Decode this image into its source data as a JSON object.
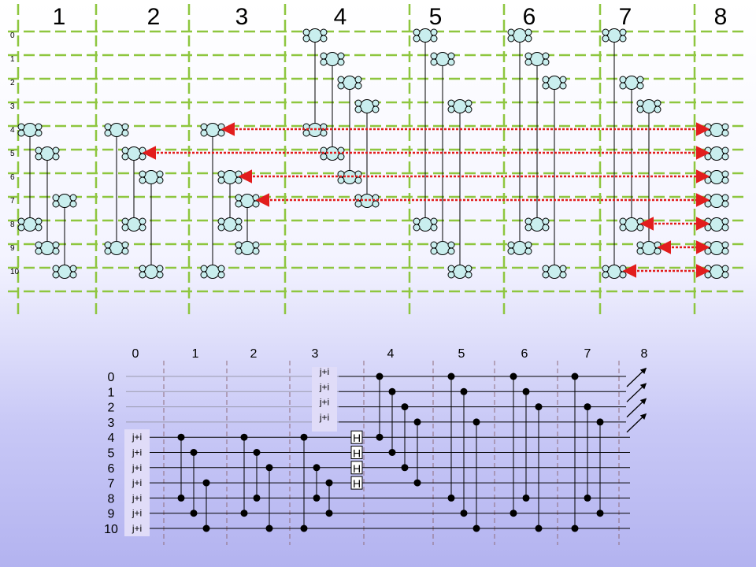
{
  "top_diagram": {
    "column_numbers": [
      "1",
      "2",
      "3",
      "4",
      "5",
      "6",
      "7",
      "8"
    ],
    "row_numbers": [
      "0",
      "1",
      "2",
      "3",
      "4",
      "5",
      "6",
      "7",
      "8",
      "9",
      "10"
    ],
    "colors": {
      "grid_line": "#8ec63f",
      "molecule_fill": "#c9eeee",
      "outline": "#000000",
      "arrow": "#e21d1d"
    },
    "molecule_pairs": [
      {
        "column": 1,
        "from_row": 4,
        "to_row": 8
      },
      {
        "column": 1,
        "from_row": 5,
        "to_row": 9
      },
      {
        "column": 1,
        "from_row": 7,
        "to_row": 10
      },
      {
        "column": 2,
        "from_row": 4,
        "to_row": 9
      },
      {
        "column": 2,
        "from_row": 5,
        "to_row": 8
      },
      {
        "column": 2,
        "from_row": 6,
        "to_row": 10
      },
      {
        "column": 3,
        "from_row": 4,
        "to_row": 10
      },
      {
        "column": 3,
        "from_row": 6,
        "to_row": 8
      },
      {
        "column": 3,
        "from_row": 7,
        "to_row": 9
      },
      {
        "column": 4,
        "from_row": 0,
        "to_row": 4
      },
      {
        "column": 4,
        "from_row": 1,
        "to_row": 5
      },
      {
        "column": 4,
        "from_row": 2,
        "to_row": 6
      },
      {
        "column": 4,
        "from_row": 3,
        "to_row": 7
      },
      {
        "column": 5,
        "from_row": 0,
        "to_row": 8
      },
      {
        "column": 5,
        "from_row": 1,
        "to_row": 9
      },
      {
        "column": 5,
        "from_row": 3,
        "to_row": 10
      },
      {
        "column": 6,
        "from_row": 0,
        "to_row": 9
      },
      {
        "column": 6,
        "from_row": 1,
        "to_row": 8
      },
      {
        "column": 6,
        "from_row": 2,
        "to_row": 10
      },
      {
        "column": 7,
        "from_row": 0,
        "to_row": 10
      },
      {
        "column": 7,
        "from_row": 2,
        "to_row": 8
      },
      {
        "column": 7,
        "from_row": 3,
        "to_row": 9
      }
    ],
    "transfer_arrows": [
      {
        "from_column": 3,
        "row": 4
      },
      {
        "from_column": 2,
        "row": 5
      },
      {
        "from_column": 3,
        "row": 6
      },
      {
        "from_column": 3,
        "row": 7
      },
      {
        "from_column": 7,
        "row": 8
      },
      {
        "from_column": 7,
        "row": 9
      },
      {
        "from_column": 7,
        "row": 10
      }
    ]
  },
  "circuit": {
    "step_labels": [
      "0",
      "1",
      "2",
      "3",
      "4",
      "5",
      "6",
      "7",
      "8"
    ],
    "qubit_labels": [
      "0",
      "1",
      "2",
      "3",
      "4",
      "5",
      "6",
      "7",
      "8",
      "9",
      "10"
    ],
    "init_label": "j+i",
    "init_qubits_early": [
      4,
      5,
      6,
      7,
      8,
      9,
      10
    ],
    "init_qubits_late": [
      0,
      1,
      2,
      3
    ],
    "hadamard_label": "H",
    "hadamard_qubits": [
      4,
      5,
      6,
      7
    ],
    "measured_qubits": [
      0,
      1,
      2,
      3
    ],
    "colors": {
      "wire": "#000000",
      "dashed_separator": "#8f6d7b",
      "label_box": "#e0dcf8",
      "gate_fill": "#ffffff"
    },
    "cz_gates": [
      {
        "step": 1,
        "qubits": [
          4,
          8
        ]
      },
      {
        "step": 1,
        "qubits": [
          5,
          9
        ]
      },
      {
        "step": 1,
        "qubits": [
          7,
          10
        ]
      },
      {
        "step": 2,
        "qubits": [
          4,
          9
        ]
      },
      {
        "step": 2,
        "qubits": [
          5,
          8
        ]
      },
      {
        "step": 2,
        "qubits": [
          6,
          10
        ]
      },
      {
        "step": 3,
        "qubits": [
          4,
          10
        ]
      },
      {
        "step": 3,
        "qubits": [
          6,
          8
        ]
      },
      {
        "step": 3,
        "qubits": [
          7,
          9
        ]
      },
      {
        "step": 4,
        "qubits": [
          0,
          4
        ]
      },
      {
        "step": 4,
        "qubits": [
          1,
          5
        ]
      },
      {
        "step": 4,
        "qubits": [
          2,
          6
        ]
      },
      {
        "step": 4,
        "qubits": [
          3,
          7
        ]
      },
      {
        "step": 5,
        "qubits": [
          0,
          8
        ]
      },
      {
        "step": 5,
        "qubits": [
          1,
          9
        ]
      },
      {
        "step": 5,
        "qubits": [
          3,
          10
        ]
      },
      {
        "step": 6,
        "qubits": [
          0,
          9
        ]
      },
      {
        "step": 6,
        "qubits": [
          1,
          8
        ]
      },
      {
        "step": 6,
        "qubits": [
          2,
          10
        ]
      },
      {
        "step": 7,
        "qubits": [
          0,
          10
        ]
      },
      {
        "step": 7,
        "qubits": [
          2,
          8
        ]
      },
      {
        "step": 7,
        "qubits": [
          3,
          9
        ]
      }
    ]
  }
}
